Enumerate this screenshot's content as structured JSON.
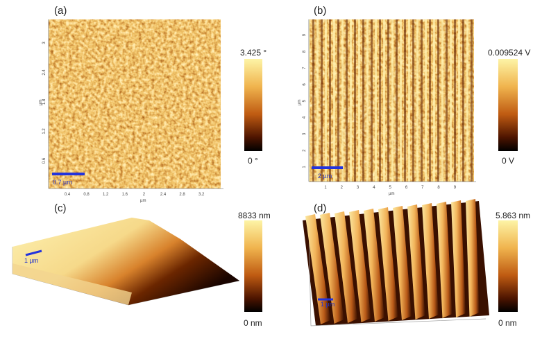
{
  "panels": [
    {
      "label": "(a)",
      "colorbar_max": "3.425 °",
      "colorbar_min": "0 °",
      "scale_bar": "0.7 µm",
      "x_unit": "µm",
      "y_unit": "µm",
      "x_ticks": [
        0.4,
        0.8,
        1.2,
        1.6,
        2,
        2.4,
        2.8,
        3.2
      ],
      "y_ticks": [
        0.6,
        1.2,
        1.8,
        2.4,
        3
      ]
    },
    {
      "label": "(b)",
      "colorbar_max": "0.009524 V",
      "colorbar_min": "0 V",
      "scale_bar": "2 µm",
      "x_unit": "µm",
      "y_unit": "µm",
      "x_ticks": [
        1,
        2,
        3,
        4,
        5,
        6,
        7,
        8,
        9
      ],
      "y_ticks": [
        1,
        2,
        3,
        4,
        5,
        6,
        7,
        8,
        9
      ]
    },
    {
      "label": "(c)",
      "colorbar_max": "8833 nm",
      "colorbar_min": "0 nm",
      "scale_bar": "1 µm"
    },
    {
      "label": "(d)",
      "colorbar_max": "5.863 nm",
      "colorbar_min": "0 nm",
      "scale_bar": "1 µm"
    }
  ]
}
